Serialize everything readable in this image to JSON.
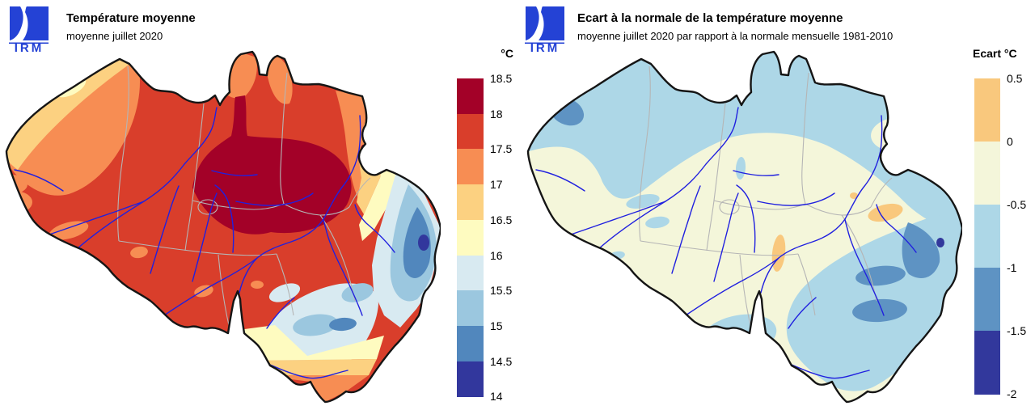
{
  "page": {
    "background": "#FFFFFF"
  },
  "branding": {
    "logo_text": "IRM",
    "logo_color": "#2442D5"
  },
  "left_panel": {
    "title": "Température moyenne",
    "subtitle": "moyenne juillet 2020",
    "legend": {
      "header": "°C",
      "tick_labels": [
        "18.5",
        "18",
        "17.5",
        "17",
        "16.5",
        "16",
        "15.5",
        "15",
        "14.5",
        "14"
      ],
      "band_colors": [
        "#A30128",
        "#D93E2B",
        "#F78D53",
        "#FCD181",
        "#FEFBC0",
        "#D8EAF1",
        "#9BC7DF",
        "#5187BD",
        "#32379D"
      ]
    }
  },
  "right_panel": {
    "title": "Ecart à la normale de la température moyenne",
    "subtitle": "moyenne juillet 2020 par rapport à la normale mensuelle 1981-2010",
    "legend": {
      "header": "Ecart °C",
      "tick_labels": [
        "0.5",
        "0",
        "-0.5",
        "-1",
        "-1.5",
        "-2"
      ],
      "band_colors": [
        "#F9C87D",
        "#F4F6DA",
        "#ADD7E7",
        "#5E93C3",
        "#32389C"
      ]
    }
  },
  "map": {
    "country": "Belgique",
    "border_color": "#151515",
    "river_color": "#2020DF",
    "province_border_color": "#B5B5B5"
  },
  "chart_data": [
    {
      "type": "heatmap",
      "title": "Température moyenne",
      "subtitle": "moyenne juillet 2020",
      "unit": "°C",
      "region": "Belgique",
      "legend_ticks": [
        18.5,
        18,
        17.5,
        17,
        16.5,
        16,
        15.5,
        15,
        14.5,
        14
      ],
      "legend_colors": [
        "#A30128",
        "#D93E2B",
        "#F78D53",
        "#FCD181",
        "#FEFBC0",
        "#D8EAF1",
        "#9BC7DF",
        "#5187BD",
        "#32379D"
      ],
      "value_range": [
        14,
        18.5
      ],
      "legend_position": "right"
    },
    {
      "type": "heatmap",
      "title": "Ecart à la normale de la température moyenne",
      "subtitle": "moyenne juillet 2020 par rapport à la normale mensuelle 1981-2010",
      "unit": "Ecart °C",
      "region": "Belgique",
      "legend_ticks": [
        0.5,
        0,
        -0.5,
        -1,
        -1.5,
        -2
      ],
      "legend_colors": [
        "#F9C87D",
        "#F4F6DA",
        "#ADD7E7",
        "#5E93C3",
        "#32389C"
      ],
      "value_range": [
        -2,
        0.5
      ],
      "legend_position": "right"
    }
  ]
}
